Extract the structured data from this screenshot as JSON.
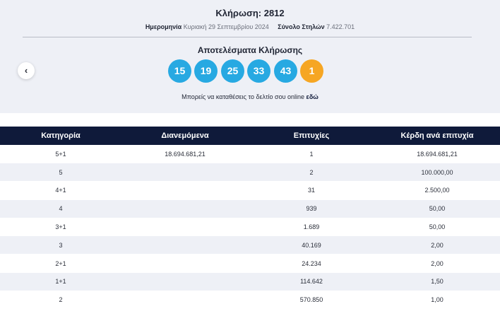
{
  "header": {
    "title": "Κλήρωση: 2812",
    "date_label": "Ημερομηνία",
    "date_value": "Κυριακή 29 Σεπτεμβρίου 2024",
    "columns_label": "Σύνολο Στηλών",
    "columns_value": "7.422.701"
  },
  "results": {
    "title": "Αποτελέσματα Κλήρωσης",
    "numbers": [
      "15",
      "19",
      "25",
      "33",
      "43"
    ],
    "bonus": "1",
    "colors": {
      "main": "#27a9e2",
      "bonus": "#f6a623"
    }
  },
  "nav": {
    "prev_icon": "chevron-left-icon",
    "prev_glyph": "‹"
  },
  "online_note": {
    "text": "Μπορείς να καταθέσεις το δελτίο σου online ",
    "link": "εδώ"
  },
  "table": {
    "headers": [
      "Κατηγορία",
      "Διανεμόμενα",
      "Επιτυχίες",
      "Κέρδη ανά επιτυχία"
    ],
    "rows": [
      [
        "5+1",
        "18.694.681,21",
        "1",
        "18.694.681,21"
      ],
      [
        "5",
        "",
        "2",
        "100.000,00"
      ],
      [
        "4+1",
        "",
        "31",
        "2.500,00"
      ],
      [
        "4",
        "",
        "939",
        "50,00"
      ],
      [
        "3+1",
        "",
        "1.689",
        "50,00"
      ],
      [
        "3",
        "",
        "40.169",
        "2,00"
      ],
      [
        "2+1",
        "",
        "24.234",
        "2,00"
      ],
      [
        "1+1",
        "",
        "114.642",
        "1,50"
      ],
      [
        "2",
        "",
        "570.850",
        "1,00"
      ]
    ],
    "colors": {
      "header_bg": "#0f1a3a",
      "stripe": "#eef0f6"
    }
  }
}
